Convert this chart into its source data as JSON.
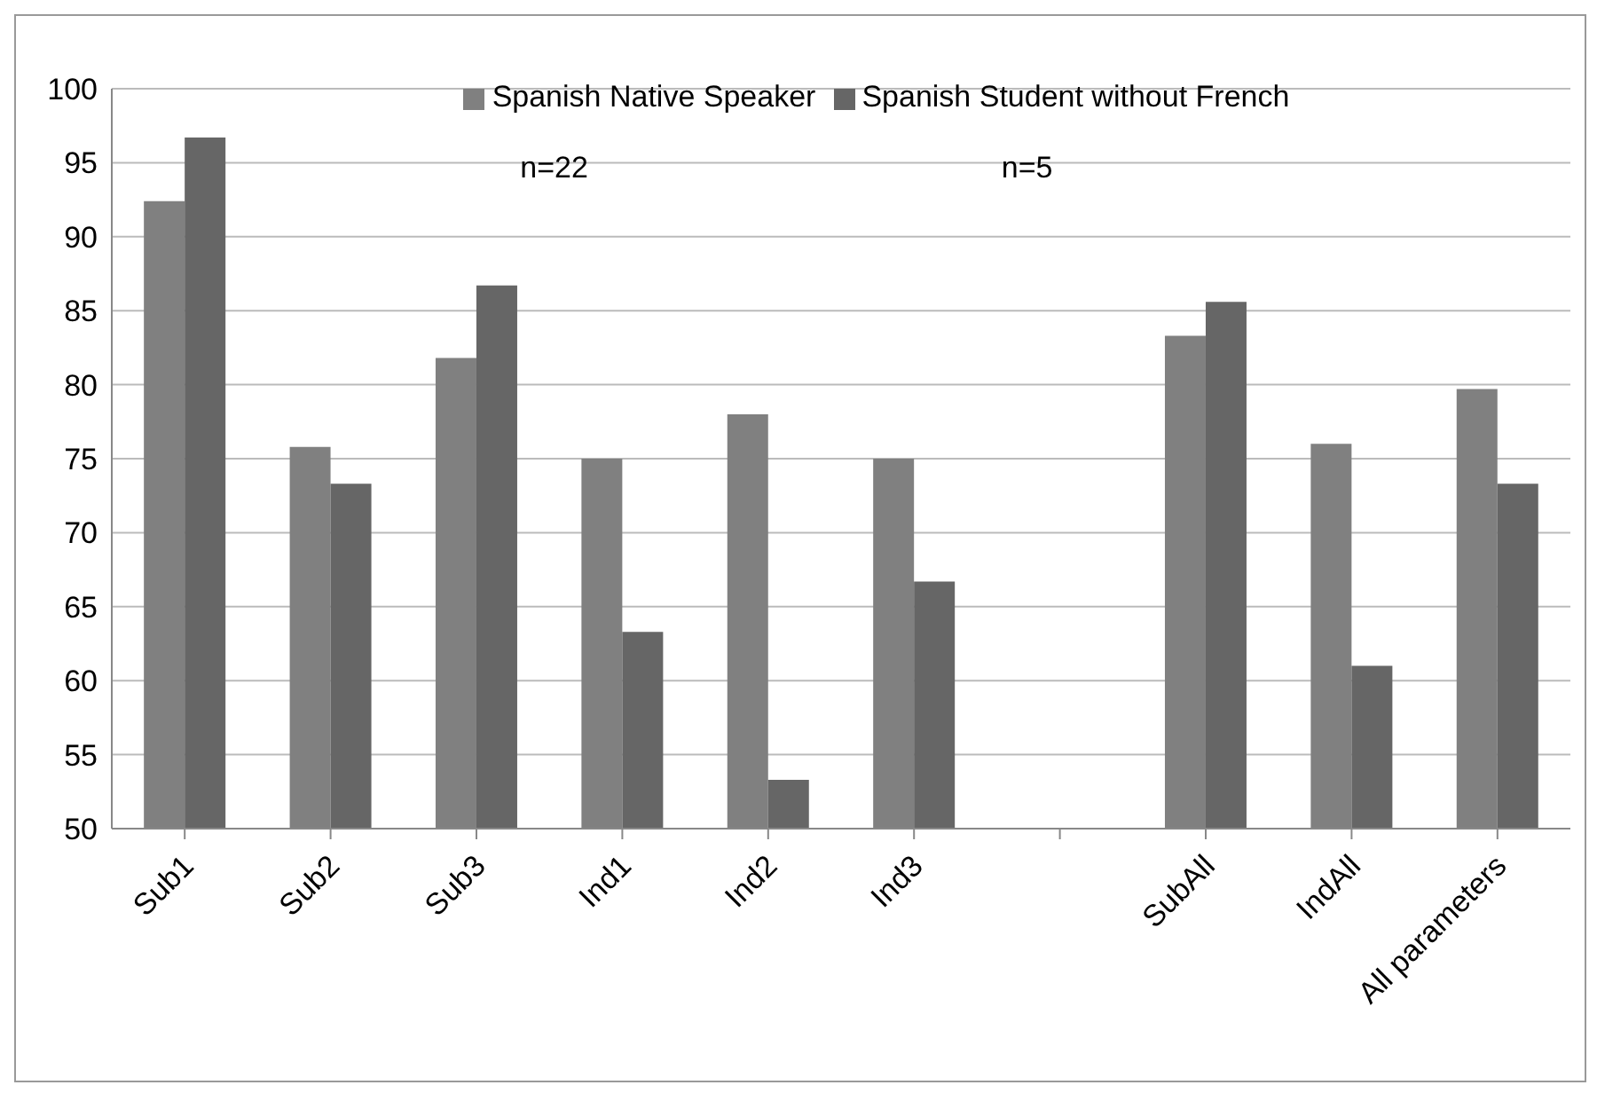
{
  "chart_data": {
    "type": "bar",
    "categories": [
      "Sub1",
      "Sub2",
      "Sub3",
      "Ind1",
      "Ind2",
      "Ind3",
      null,
      "SubAll",
      "IndAll",
      "All parameters"
    ],
    "series": [
      {
        "name": "Spanish Native Speaker",
        "color": "#808080",
        "values": [
          92.4,
          75.8,
          81.8,
          75.0,
          78.0,
          75.0,
          null,
          83.3,
          76.0,
          79.7
        ]
      },
      {
        "name": "Spanish Student without French",
        "color": "#666666",
        "values": [
          96.7,
          73.3,
          86.7,
          63.3,
          53.3,
          66.7,
          null,
          85.6,
          61.0,
          73.3
        ]
      }
    ],
    "ylim": [
      50,
      100
    ],
    "yticks": [
      50,
      55,
      60,
      65,
      70,
      75,
      80,
      85,
      90,
      95,
      100
    ],
    "grid": "y",
    "legend": "top",
    "annotations": [
      "n=22",
      "n=5"
    ]
  }
}
